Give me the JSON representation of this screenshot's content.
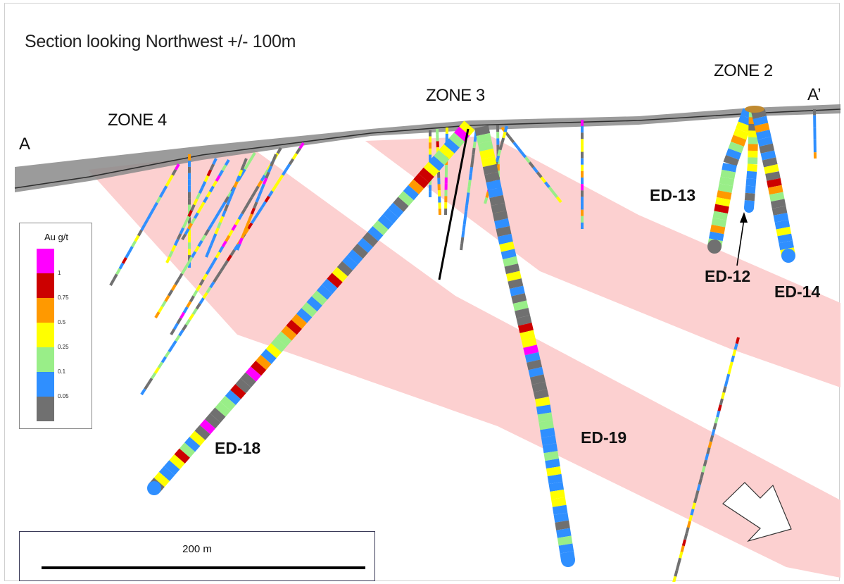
{
  "title": "Section looking Northwest +/- 100m",
  "section_ends": {
    "start": "A",
    "end": "A’"
  },
  "zones": {
    "zone4": "ZONE 4",
    "zone3": "ZONE 3",
    "zone2": "ZONE 2"
  },
  "drill_holes": {
    "ed18": "ED-18",
    "ed19": "ED-19",
    "ed13": "ED-13",
    "ed12": "ED-12",
    "ed14": "ED-14"
  },
  "legend": {
    "title": "Au g/t",
    "classes": [
      {
        "color": "#ff00ff",
        "tick": "1"
      },
      {
        "color": "#cc0000",
        "tick": "0.75"
      },
      {
        "color": "#ff9900",
        "tick": "0.5"
      },
      {
        "color": "#ffff00",
        "tick": "0.25"
      },
      {
        "color": "#99ee88",
        "tick": "0.1"
      },
      {
        "color": "#2f8fff",
        "tick": "0.05"
      },
      {
        "color": "#707070",
        "tick": ""
      }
    ]
  },
  "scale_bar": {
    "label": "200 m"
  },
  "colors": {
    "mineralized_band": "#fcd0d0",
    "topography": "#6e6e6e",
    "arrow_fill": "#ffffff"
  }
}
